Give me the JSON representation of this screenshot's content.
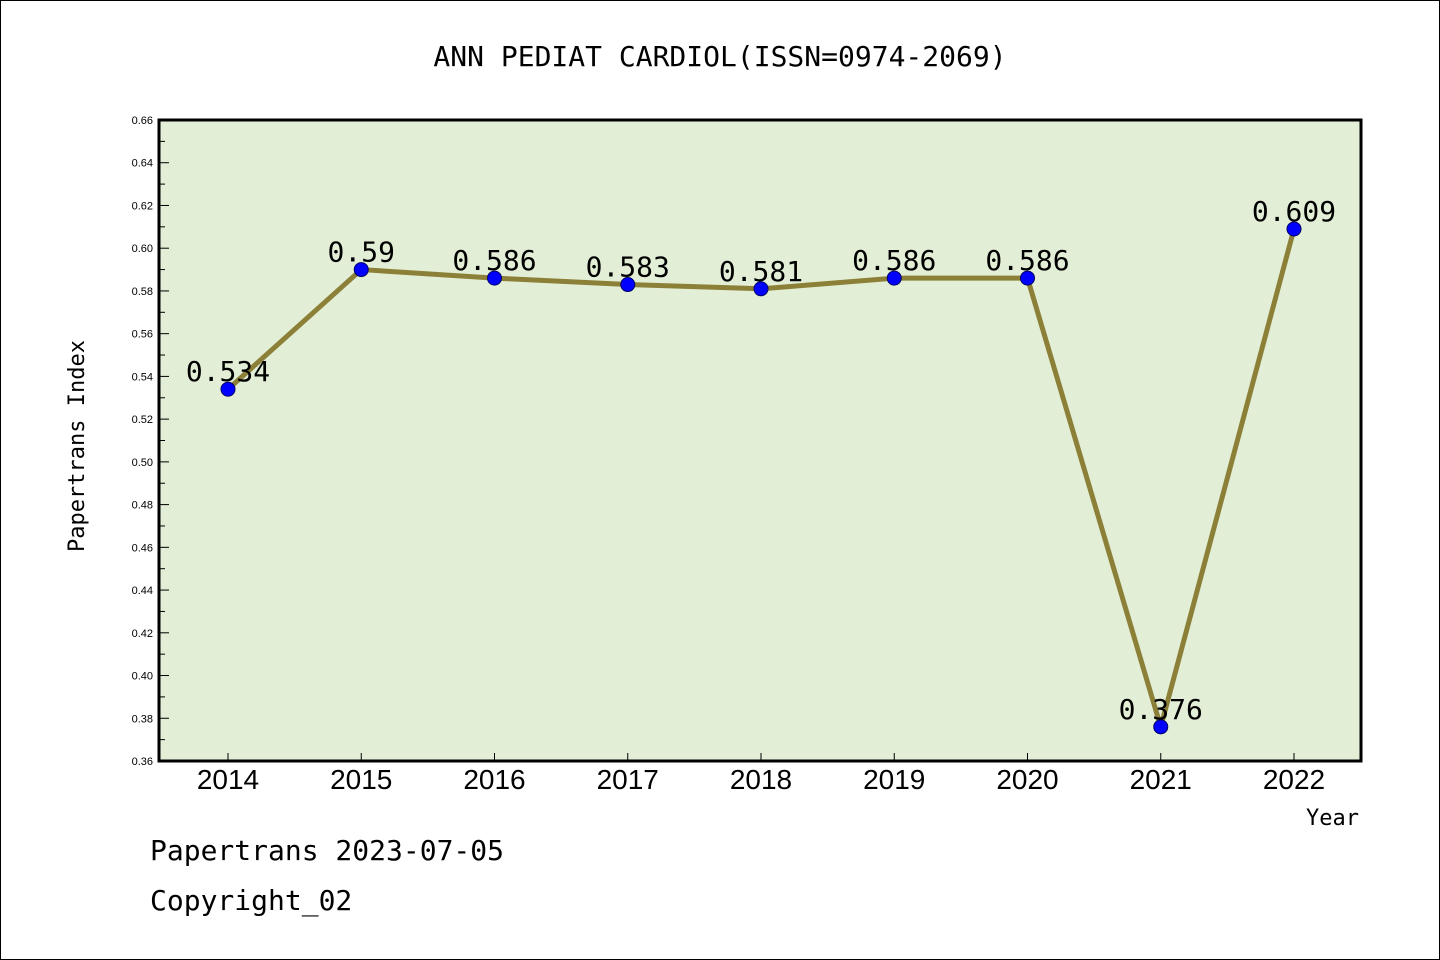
{
  "chart_data": {
    "type": "line",
    "title": "ANN PEDIAT CARDIOL(ISSN=0974-2069)",
    "xlabel": "Year",
    "ylabel": "Papertrans Index",
    "categories": [
      "2014",
      "2015",
      "2016",
      "2017",
      "2018",
      "2019",
      "2020",
      "2021",
      "2022"
    ],
    "series": [
      {
        "values": [
          0.534,
          0.59,
          0.586,
          0.583,
          0.581,
          0.586,
          0.586,
          0.376,
          0.609
        ],
        "data_labels": [
          "0.534",
          "0.59",
          "0.586",
          "0.583",
          "0.581",
          "0.586",
          "0.586",
          "0.376",
          "0.609"
        ]
      }
    ],
    "ylim": [
      0.36,
      0.66
    ],
    "yticks": [
      "0.36",
      "0.38",
      "0.40",
      "0.42",
      "0.44",
      "0.46",
      "0.48",
      "0.50",
      "0.52",
      "0.54",
      "0.56",
      "0.58",
      "0.60",
      "0.62",
      "0.64",
      "0.66"
    ],
    "grid": false,
    "legend": "none",
    "colors": {
      "plot_background": "#e2efd6",
      "line": "#8c8038",
      "marker": "#0000ff",
      "axis": "#000000"
    }
  },
  "footer": {
    "line1": "Papertrans 2023-07-05",
    "line2": "Copyright_02"
  }
}
